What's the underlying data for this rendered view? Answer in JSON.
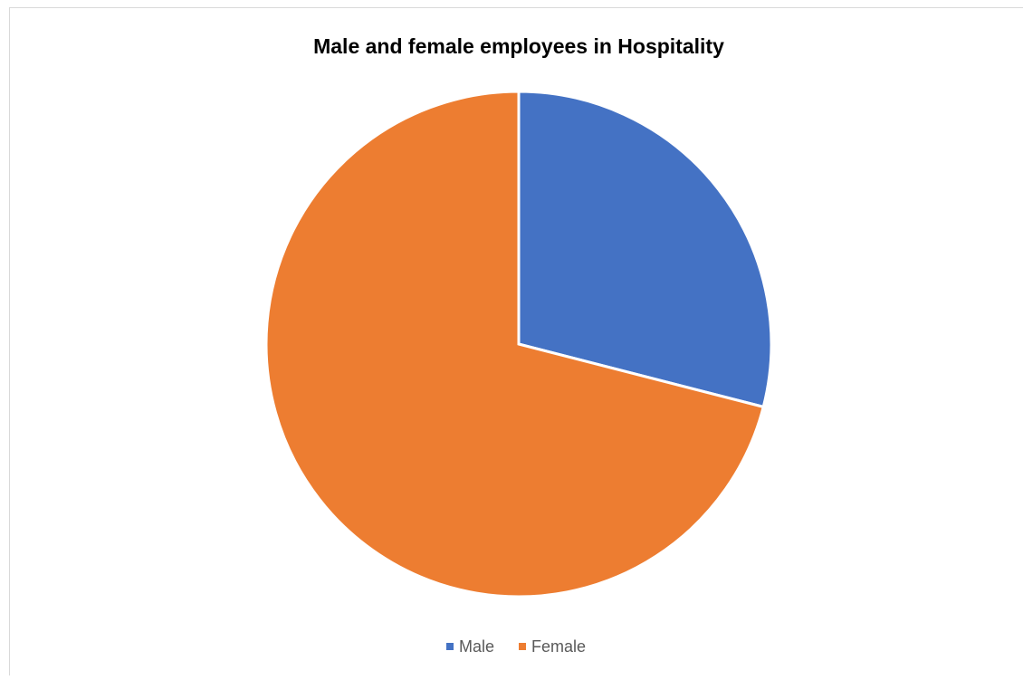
{
  "chart_data": {
    "type": "pie",
    "title": "Male and female employees in Hospitality",
    "categories": [
      "Male",
      "Female"
    ],
    "values": [
      29,
      71
    ],
    "colors": [
      "#4472c4",
      "#ed7d31"
    ],
    "legend": "bottom"
  }
}
